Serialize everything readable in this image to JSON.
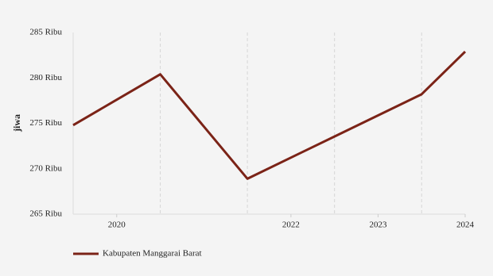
{
  "chart_data": {
    "type": "line",
    "y_label": "jiwa",
    "x": [
      2019.5,
      2020.5,
      2021.5,
      2022.5,
      2023.5,
      2024
    ],
    "series": [
      {
        "name": "Kabupaten Manggarai Barat",
        "color": "#7b2317",
        "values": [
          274800,
          280400,
          268900,
          273550,
          278200,
          282900
        ]
      }
    ],
    "xlim": [
      2019.5,
      2024
    ],
    "xticks": [
      2020,
      2022,
      2023,
      2024
    ],
    "ylim": [
      265000,
      285000
    ],
    "yticks": [
      {
        "value": 265000,
        "label": "265 Ribu"
      },
      {
        "value": 270000,
        "label": "270 Ribu"
      },
      {
        "value": 275000,
        "label": "275 Ribu"
      },
      {
        "value": 280000,
        "label": "280 Ribu"
      },
      {
        "value": 285000,
        "label": "285 Ribu"
      }
    ],
    "legend": "bottom-left"
  }
}
